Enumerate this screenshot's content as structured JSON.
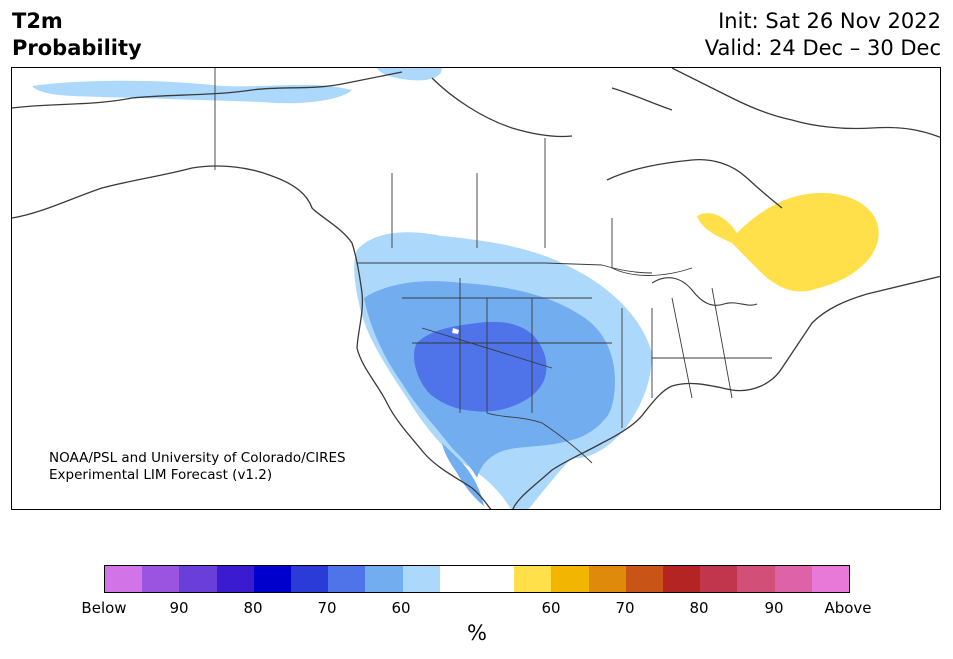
{
  "title": {
    "left_line1": "T2m",
    "left_line2": "Probability",
    "right_line1": "Init: Sat 26 Nov 2022",
    "right_line2": "Valid: 24 Dec – 30 Dec"
  },
  "credit": {
    "line1": "NOAA/PSL and University of Colorado/CIRES",
    "line2": "Experimental LIM Forecast (v1.2)"
  },
  "colorbar": {
    "unit": "%",
    "segments": [
      "#d373e8",
      "#9b54e0",
      "#6a3ed8",
      "#3a1bd0",
      "#0000cd",
      "#2a3bd8",
      "#4f73e8",
      "#72adf0",
      "#acd9fb",
      "#ffffff",
      "#ffffff",
      "#ffe04a",
      "#f2b600",
      "#e08a0b",
      "#c95418",
      "#b32422",
      "#c2364d",
      "#d25077",
      "#dd62a8",
      "#e879d8"
    ],
    "labels": [
      "Below",
      "90",
      "80",
      "70",
      "60",
      "60",
      "70",
      "80",
      "90",
      "Above"
    ]
  },
  "map": {
    "legend_colors": {
      "below_60": "#acd9fb",
      "below_70": "#72adf0",
      "below_80": "#4f73e8",
      "above_60": "#ffe04a"
    }
  }
}
